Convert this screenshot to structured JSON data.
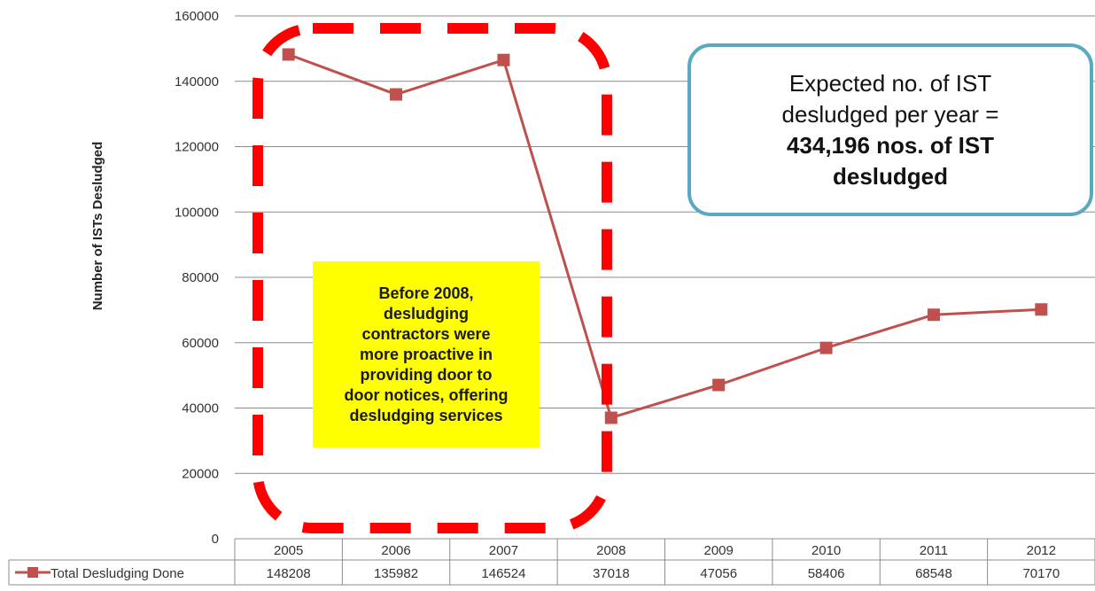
{
  "chart_data": {
    "type": "line",
    "categories": [
      "2005",
      "2006",
      "2007",
      "2008",
      "2009",
      "2010",
      "2011",
      "2012"
    ],
    "series": [
      {
        "name": "Total Desludging Done",
        "values": [
          148208,
          135982,
          146524,
          37018,
          47056,
          58406,
          68548,
          70170
        ]
      }
    ],
    "value_labels": [
      "148208",
      "135982",
      "146524",
      "37018",
      "47056",
      "58406",
      "68548",
      "70170"
    ],
    "ylabel": "Number of ISTs Desludged",
    "xlabel": "",
    "title": "",
    "ylim": [
      0,
      160000
    ],
    "yticks": [
      0,
      20000,
      40000,
      60000,
      80000,
      100000,
      120000,
      140000,
      160000
    ],
    "ytick_labels": [
      "0",
      "20000",
      "40000",
      "60000",
      "80000",
      "100000",
      "120000",
      "140000",
      "160000"
    ],
    "grid": true,
    "legend": "data table below plot",
    "series_color": "#c0504d",
    "highlight_color": "#ff0000",
    "annotations": {
      "yellow_note_lines": [
        "Before 2008,",
        "desludging",
        "contractors were",
        "more proactive in",
        "providing door to",
        "door notices, offering",
        "desludging services"
      ],
      "blue_callout": {
        "line1": "Expected no. of IST",
        "line2": "desludged per year =",
        "line3_bold": "434,196 nos. of IST",
        "line4_bold": "desludged"
      }
    }
  }
}
